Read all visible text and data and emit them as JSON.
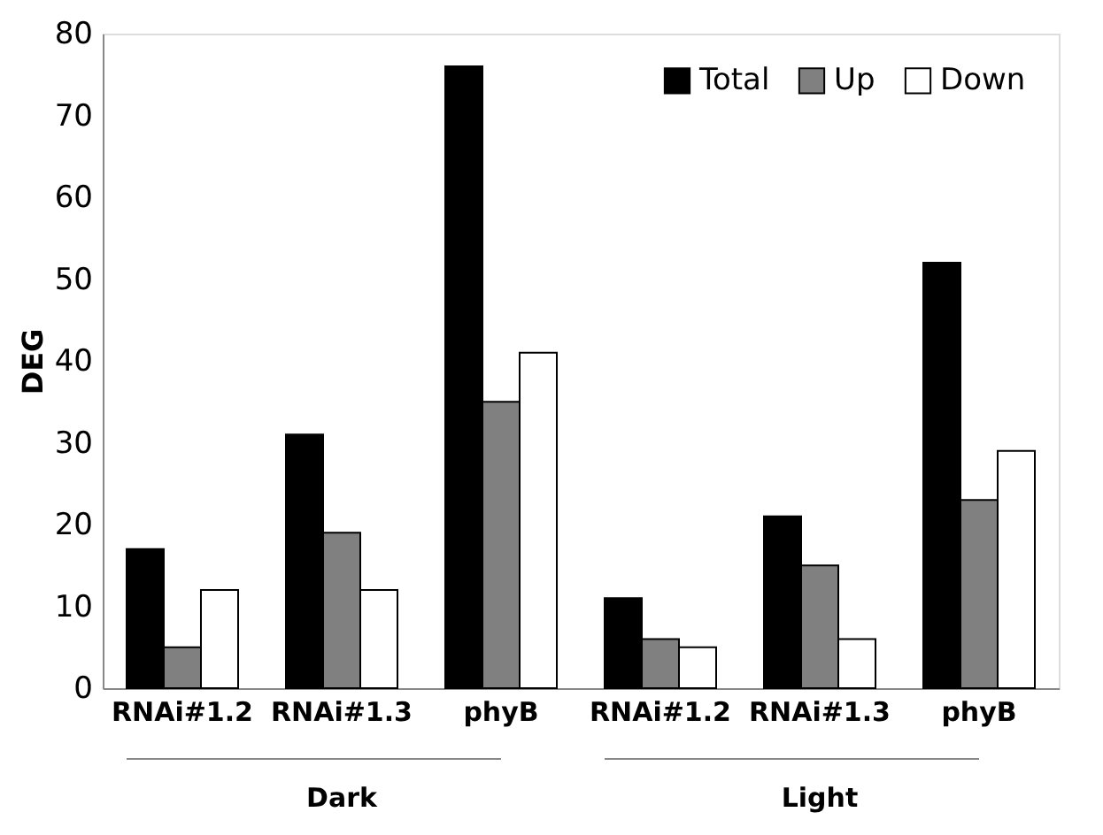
{
  "chart_data": {
    "type": "bar",
    "ylabel": "DEG",
    "categories": [
      "RNAi#1.2",
      "RNAi#1.3",
      "phyB",
      "RNAi#1.2",
      "RNAi#1.3",
      "phyB"
    ],
    "series": [
      {
        "name": "Total",
        "color": "#000000",
        "values": [
          17,
          31,
          76,
          11,
          21,
          52
        ]
      },
      {
        "name": "Up",
        "color": "#808080",
        "values": [
          5,
          19,
          35,
          6,
          15,
          23
        ]
      },
      {
        "name": "Down",
        "color": "#ffffff",
        "values": [
          12,
          12,
          41,
          5,
          6,
          29
        ]
      }
    ],
    "ylim": [
      0,
      80
    ],
    "yticks": [
      0,
      10,
      20,
      30,
      40,
      50,
      60,
      70,
      80
    ],
    "grid": false,
    "legend": "top right",
    "annotations": [
      "Dark",
      "Light"
    ]
  }
}
